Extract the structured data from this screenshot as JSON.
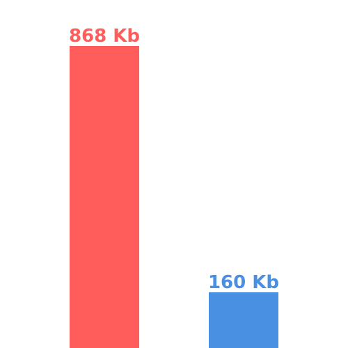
{
  "chart_data": {
    "type": "bar",
    "categories": [
      "",
      ""
    ],
    "values": [
      868,
      160
    ],
    "unit": "Kb",
    "labels": [
      "868 Kb",
      "160 Kb"
    ],
    "colors": [
      "#ff5c5c",
      "#4a90e2"
    ],
    "title": "",
    "xlabel": "",
    "ylabel": "",
    "ylim": [
      0,
      1000
    ],
    "grid": false
  }
}
